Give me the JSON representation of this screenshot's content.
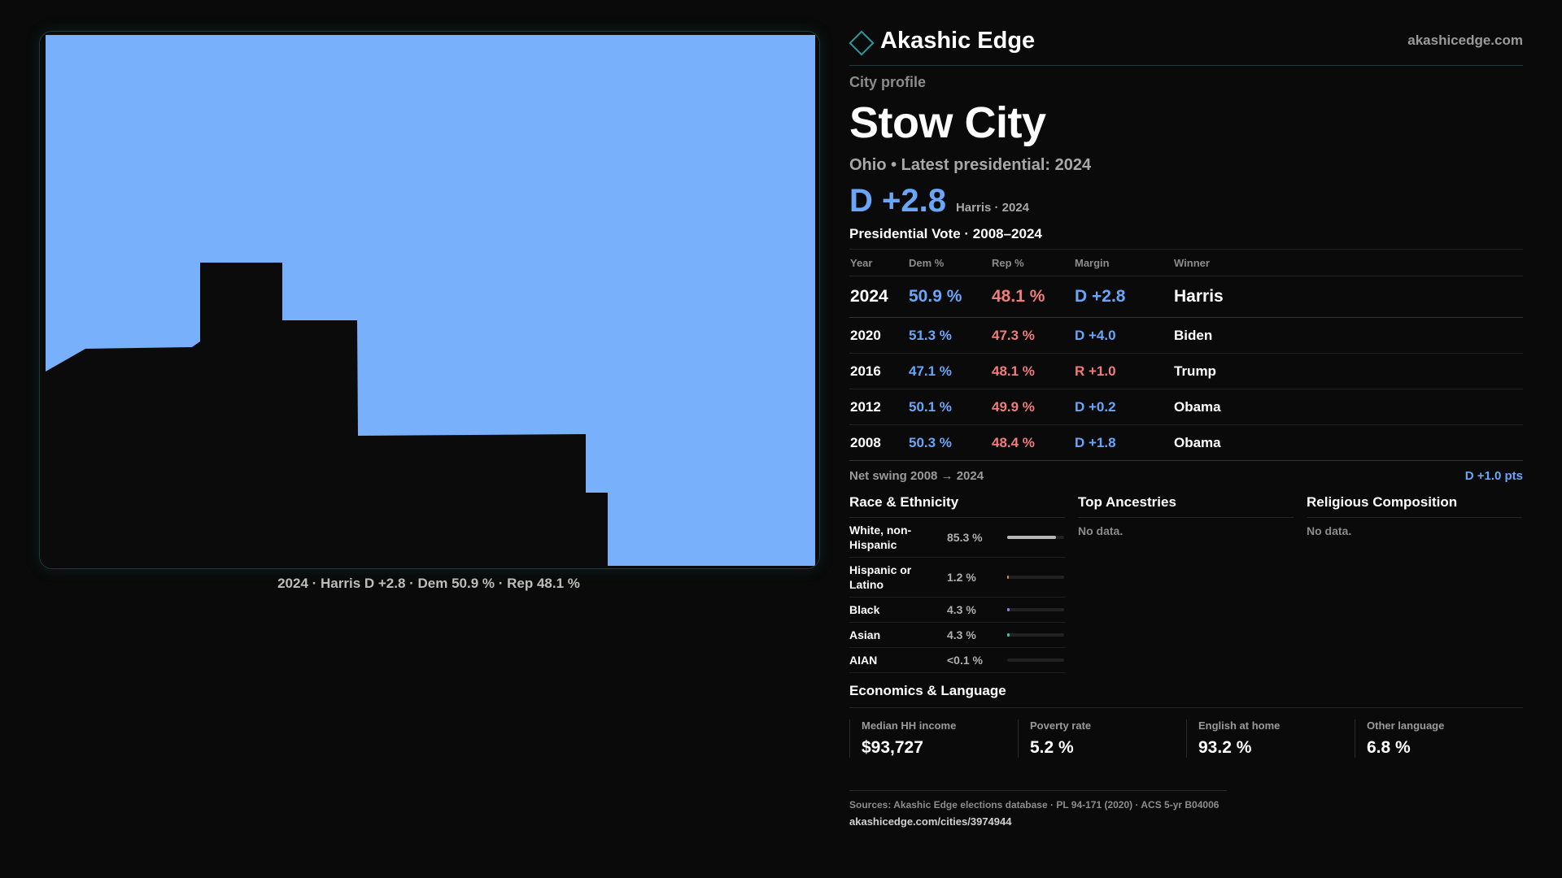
{
  "map": {
    "caption": "2024 · Harris D +2.8 · Dem 50.9 % · Rep 48.1 %",
    "fill_color": "#79b0fb",
    "background_color": "#0b0b0b"
  },
  "header": {
    "brand": "Akashic Edge",
    "site": "akashicedge.com"
  },
  "profile": {
    "kicker": "City profile",
    "title": "Stow City",
    "subtitle": "Ohio • Latest presidential: 2024",
    "headline_margin": "D +2.8",
    "headline_note": "Harris · 2024"
  },
  "votes": {
    "title": "Presidential Vote · 2008–2024",
    "headers": [
      "Year",
      "Dem %",
      "Rep %",
      "Margin",
      "Winner"
    ],
    "rows": [
      {
        "year": "2024",
        "dem": "50.9 %",
        "rep": "48.1 %",
        "margin": "D +2.8",
        "party": "D",
        "winner": "Harris"
      },
      {
        "year": "2020",
        "dem": "51.3 %",
        "rep": "47.3 %",
        "margin": "D +4.0",
        "party": "D",
        "winner": "Biden"
      },
      {
        "year": "2016",
        "dem": "47.1 %",
        "rep": "48.1 %",
        "margin": "R +1.0",
        "party": "R",
        "winner": "Trump"
      },
      {
        "year": "2012",
        "dem": "50.1 %",
        "rep": "49.9 %",
        "margin": "D +0.2",
        "party": "D",
        "winner": "Obama"
      },
      {
        "year": "2008",
        "dem": "50.3 %",
        "rep": "48.4 %",
        "margin": "D +1.8",
        "party": "D",
        "winner": "Obama"
      }
    ],
    "swing_label": "Net swing 2008 → 2024",
    "swing_value": "D +1.0 pts"
  },
  "race": {
    "title": "Race & Ethnicity",
    "rows": [
      {
        "label": "White, non-Hispanic",
        "pct": "85.3 %",
        "share": 0.853,
        "color": "#b8b8b8"
      },
      {
        "label": "Hispanic or Latino",
        "pct": "1.2 %",
        "share": 0.012,
        "color": "#e08a4a"
      },
      {
        "label": "Black",
        "pct": "4.3 %",
        "share": 0.043,
        "color": "#9a7cf0"
      },
      {
        "label": "Asian",
        "pct": "4.3 %",
        "share": 0.043,
        "color": "#3fc4a0"
      },
      {
        "label": "AIAN",
        "pct": "<0.1 %",
        "share": 0.0,
        "color": "#888888"
      }
    ]
  },
  "ancestries": {
    "title": "Top Ancestries",
    "empty": "No data."
  },
  "religion": {
    "title": "Religious Composition",
    "empty": "No data."
  },
  "economics": {
    "title": "Economics & Language",
    "cells": [
      {
        "label": "Median HH income",
        "value": "$93,727"
      },
      {
        "label": "Poverty rate",
        "value": "5.2 %"
      },
      {
        "label": "English at home",
        "value": "93.2 %"
      },
      {
        "label": "Other language",
        "value": "6.8 %"
      }
    ]
  },
  "footer": {
    "sources": "Sources: Akashic Edge elections database · PL 94-171 (2020) · ACS 5-yr B04006",
    "link": "akashicedge.com/cities/3974944"
  },
  "colors": {
    "dem": "#6aa6f8",
    "rep": "#f07c7c",
    "accent": "#2a9a9a"
  }
}
